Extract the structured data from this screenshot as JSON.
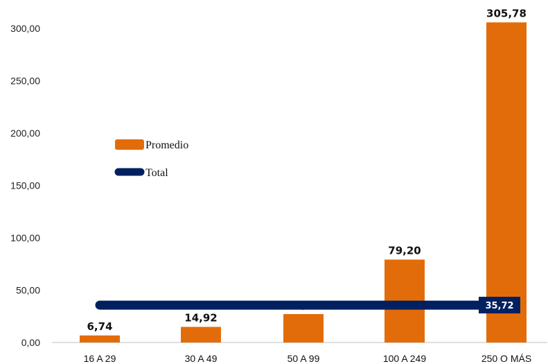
{
  "chart_data": {
    "type": "bar",
    "categories": [
      "16 A 29",
      "30 A 49",
      "50 A 99",
      "100 A 249",
      "250 O MÁS"
    ],
    "series": [
      {
        "name": "Promedio",
        "type": "bar",
        "values": [
          6.74,
          14.92,
          27.16,
          79.2,
          305.78
        ],
        "labels": [
          "6,74",
          "14,92",
          "27,16",
          "79,20",
          "305,78"
        ],
        "color": "#E36C0A"
      },
      {
        "name": "Total",
        "type": "line",
        "values": [
          35.72,
          35.72,
          35.72,
          35.72,
          35.72
        ],
        "label": "35,72",
        "color": "#002060"
      }
    ],
    "ylim": [
      0,
      300
    ],
    "yticks": [
      0,
      50,
      100,
      150,
      200,
      250,
      300
    ],
    "ytick_labels": [
      "0,00",
      "50,00",
      "100,00",
      "150,00",
      "200,00",
      "250,00",
      "300,00"
    ],
    "legend_position": "left-center",
    "grid": false,
    "title": "",
    "xlabel": "",
    "ylabel": ""
  }
}
